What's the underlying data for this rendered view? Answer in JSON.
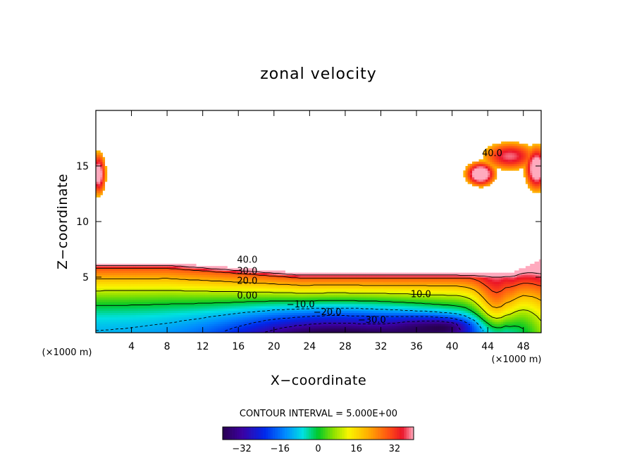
{
  "chart_data": {
    "type": "heatmap",
    "title": "zonal velocity",
    "xlabel": "X−coordinate",
    "ylabel": "Z−coordinate",
    "x_unit_label": "(×1000 m)",
    "y_unit_label": "(×1000 m)",
    "xlim": [
      0,
      50
    ],
    "ylim": [
      0,
      20
    ],
    "x_ticks": [
      "4",
      "8",
      "12",
      "16",
      "20",
      "24",
      "28",
      "32",
      "36",
      "40",
      "44",
      "48"
    ],
    "y_ticks": [
      "5",
      "10",
      "15"
    ],
    "contour_interval_text": "CONTOUR INTERVAL = 5.000E+00",
    "contour_interval": 5,
    "colorbar": {
      "min": -40,
      "max": 40,
      "ticks": [
        "−32",
        "−16",
        "0",
        "16",
        "32"
      ]
    },
    "contour_labels": [
      {
        "text": "40.0",
        "x": 17.0,
        "z": 6.6
      },
      {
        "text": "30.0",
        "x": 17.0,
        "z": 5.6
      },
      {
        "text": "20.0",
        "x": 17.0,
        "z": 4.7
      },
      {
        "text": "0.00",
        "x": 17.0,
        "z": 3.4
      },
      {
        "text": "10.0",
        "x": 36.5,
        "z": 3.5
      },
      {
        "text": "−10.0",
        "x": 23.0,
        "z": 2.6
      },
      {
        "text": "−20.0",
        "x": 26.0,
        "z": 1.9
      },
      {
        "text": "−30.0",
        "x": 31.0,
        "z": 1.2
      },
      {
        "text": "40.0",
        "x": 44.5,
        "z": 16.2
      }
    ],
    "regions": [
      {
        "name": "lower jet",
        "x_range": [
          0,
          50
        ],
        "z_range": [
          0,
          6.5
        ],
        "max": 45,
        "min": -40
      },
      {
        "name": "upper-left blob",
        "x_range": [
          0,
          1
        ],
        "z_range": [
          11.5,
          16.5
        ],
        "max": 40
      },
      {
        "name": "upper-right blob",
        "x_range": [
          41,
          50
        ],
        "z_range": [
          12.5,
          18
        ],
        "max": 45
      }
    ]
  }
}
